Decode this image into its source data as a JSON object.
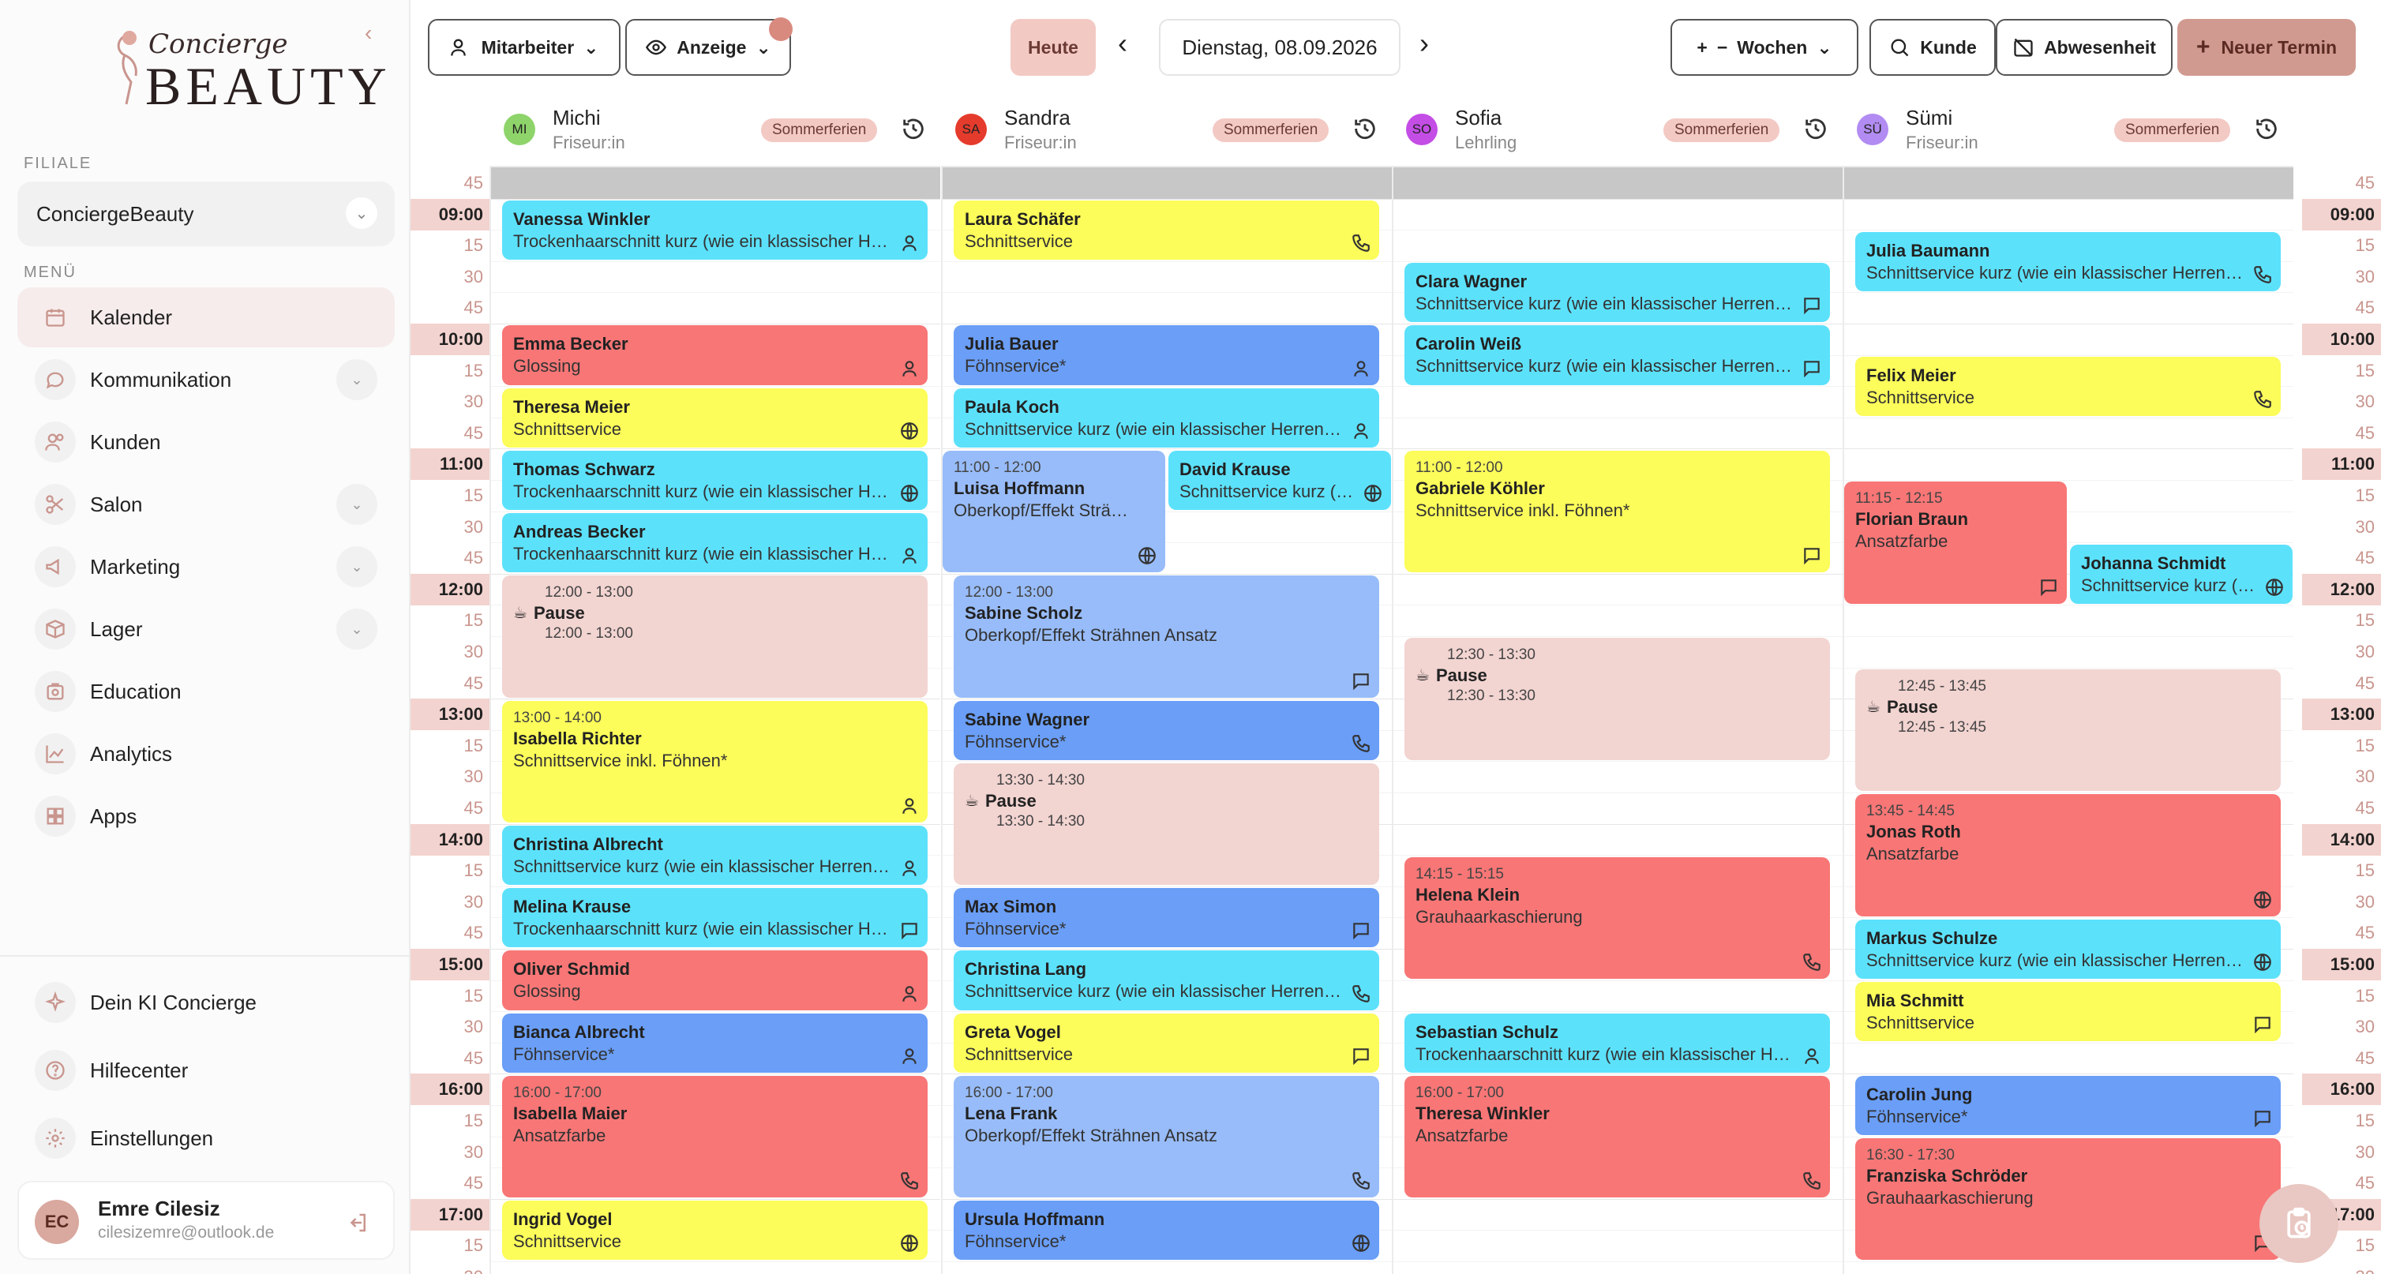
{
  "sidebar": {
    "logo_script": "Concierge",
    "logo_word": "BEAUTY",
    "branch_label": "FILIALE",
    "branch_value": "ConciergeBeauty",
    "menu_label": "MENÜ",
    "menu": [
      {
        "label": "Kalender",
        "icon": "calendar-icon"
      },
      {
        "label": "Kommunikation",
        "icon": "chat-icon"
      },
      {
        "label": "Kunden",
        "icon": "users-icon"
      },
      {
        "label": "Salon",
        "icon": "scissors-icon"
      },
      {
        "label": "Marketing",
        "icon": "megaphone-icon"
      },
      {
        "label": "Lager",
        "icon": "box-icon"
      },
      {
        "label": "Education",
        "icon": "education-icon"
      },
      {
        "label": "Analytics",
        "icon": "chart-icon"
      },
      {
        "label": "Apps",
        "icon": "apps-icon"
      }
    ],
    "bottom": [
      {
        "label": "Dein KI Concierge",
        "icon": "sparkle-icon"
      },
      {
        "label": "Hilfecenter",
        "icon": "help-icon"
      },
      {
        "label": "Einstellungen",
        "icon": "gear-icon"
      }
    ],
    "user": {
      "initials": "EC",
      "name": "Emre Cilesiz",
      "email": "cilesizemre@outlook.de"
    }
  },
  "toolbar": {
    "staff": "Mitarbeiter",
    "view": "Anzeige",
    "today": "Heute",
    "date": "Dienstag, 08.09.2026",
    "weeks": "Wochen",
    "customer": "Kunde",
    "absence": "Abwesenheit",
    "new": "Neuer Termin"
  },
  "colors": {
    "cyan": "#5ce1fb",
    "yellow": "#fcfc5a",
    "red": "#f87676",
    "blue": "#6a9ef7",
    "lightblue": "#98bcf9",
    "pause": "#f2d4d1",
    "accent": "#d19a90"
  },
  "staff": [
    {
      "initials": "MI",
      "name": "Michi",
      "role": "Friseur:in",
      "badge": "Sommerferien",
      "avatar_color": "#8ed46a"
    },
    {
      "initials": "SA",
      "name": "Sandra",
      "role": "Friseur:in",
      "badge": "Sommerferien",
      "avatar_color": "#e53b2c"
    },
    {
      "initials": "SO",
      "name": "Sofia",
      "role": "Lehrling",
      "badge": "Sommerferien",
      "avatar_color": "#c44de6"
    },
    {
      "initials": "SÜ",
      "name": "Sümi",
      "role": "Friseur:in",
      "badge": "Sommerferien",
      "avatar_color": "#b28cf2"
    }
  ],
  "time_labels": [
    "45",
    "09:00",
    "15",
    "30",
    "45",
    "10:00",
    "15",
    "30",
    "45",
    "11:00",
    "15",
    "30",
    "45",
    "12:00",
    "15",
    "30",
    "45",
    "13:00",
    "15",
    "30",
    "45",
    "14:00",
    "15",
    "30",
    "45",
    "15:00",
    "15",
    "30",
    "45",
    "16:00",
    "15",
    "30",
    "45",
    "17:00",
    "15",
    "30"
  ],
  "events": [
    {
      "col": 0,
      "sub": 0,
      "start": 0,
      "dur": 2,
      "color": "cyan",
      "time": "",
      "name": "Vanessa Winkler",
      "service": "Trockenhaarschnitt kurz (wie ein klassischer Herrenhaarschnitt)",
      "icon": "person-icon"
    },
    {
      "col": 0,
      "sub": 0,
      "start": 4,
      "dur": 2,
      "color": "red",
      "time": "",
      "name": "Emma Becker",
      "service": "Glossing",
      "icon": "person-icon"
    },
    {
      "col": 0,
      "sub": 0,
      "start": 6,
      "dur": 2,
      "color": "yellow",
      "time": "",
      "name": "Theresa Meier",
      "service": "Schnittservice",
      "icon": "globe-icon"
    },
    {
      "col": 0,
      "sub": 0,
      "start": 8,
      "dur": 2,
      "color": "cyan",
      "time": "",
      "name": "Thomas Schwarz",
      "service": "Trockenhaarschnitt kurz (wie ein klassischer Herrenhaarschnitt)",
      "icon": "globe-icon"
    },
    {
      "col": 0,
      "sub": 0,
      "start": 10,
      "dur": 2,
      "color": "cyan",
      "time": "",
      "name": "Andreas Becker",
      "service": "Trockenhaarschnitt kurz (wie ein klassischer Herrenhaarschnitt)",
      "icon": "person-icon"
    },
    {
      "col": 0,
      "sub": 0,
      "start": 12,
      "dur": 4,
      "color": "pause",
      "time": "12:00 - 13:00",
      "name": "Pause",
      "service": "12:00 - 13:00",
      "icon": ""
    },
    {
      "col": 0,
      "sub": 0,
      "start": 16,
      "dur": 4,
      "color": "yellow",
      "time": "13:00 - 14:00",
      "name": "Isabella Richter",
      "service": "Schnittservice inkl. Föhnen*",
      "icon": "person-icon"
    },
    {
      "col": 0,
      "sub": 0,
      "start": 20,
      "dur": 2,
      "color": "cyan",
      "time": "",
      "name": "Christina Albrecht",
      "service": "Schnittservice kurz (wie ein klassischer Herrenhaarschnitt)",
      "icon": "person-icon"
    },
    {
      "col": 0,
      "sub": 0,
      "start": 22,
      "dur": 2,
      "color": "cyan",
      "time": "",
      "name": "Melina Krause",
      "service": "Trockenhaarschnitt kurz (wie ein klassischer Herrenhaarschnitt)",
      "icon": "chat-icon"
    },
    {
      "col": 0,
      "sub": 0,
      "start": 24,
      "dur": 2,
      "color": "red",
      "time": "",
      "name": "Oliver Schmid",
      "service": "Glossing",
      "icon": "person-icon"
    },
    {
      "col": 0,
      "sub": 0,
      "start": 26,
      "dur": 2,
      "color": "blue",
      "time": "",
      "name": "Bianca Albrecht",
      "service": "Föhnservice*",
      "icon": "person-icon"
    },
    {
      "col": 0,
      "sub": 0,
      "start": 28,
      "dur": 4,
      "color": "red",
      "time": "16:00 - 17:00",
      "name": "Isabella Maier",
      "service": "Ansatzfarbe",
      "icon": "phone-icon"
    },
    {
      "col": 0,
      "sub": 0,
      "start": 32,
      "dur": 2,
      "color": "yellow",
      "time": "",
      "name": "Ingrid Vogel",
      "service": "Schnittservice",
      "icon": "globe-icon"
    },
    {
      "col": 1,
      "sub": 0,
      "start": 0,
      "dur": 2,
      "color": "yellow",
      "time": "",
      "name": "Laura Schäfer",
      "service": "Schnittservice",
      "icon": "phone-icon"
    },
    {
      "col": 1,
      "sub": 0,
      "start": 4,
      "dur": 2,
      "color": "blue",
      "time": "",
      "name": "Julia Bauer",
      "service": "Föhnservice*",
      "icon": "person-icon"
    },
    {
      "col": 1,
      "sub": 0,
      "start": 6,
      "dur": 2,
      "color": "cyan",
      "time": "",
      "name": "Paula Koch",
      "service": "Schnittservice kurz (wie ein klassischer Herrenhaarschnitt)",
      "icon": "person-icon"
    },
    {
      "col": 1,
      "sub": 1,
      "start": 8,
      "dur": 4,
      "color": "lightblue",
      "time": "11:00 - 12:00",
      "name": "Luisa Hoffmann",
      "service": "Oberkopf/Effekt Strähnen Ansatz",
      "icon": "globe-icon"
    },
    {
      "col": 1,
      "sub": 2,
      "start": 8,
      "dur": 2,
      "color": "cyan",
      "time": "",
      "name": "David Krause",
      "service": "Schnittservice kurz (wie ein klassischer Herrenhaarschnitt)",
      "icon": "globe-icon"
    },
    {
      "col": 1,
      "sub": 0,
      "start": 12,
      "dur": 4,
      "color": "lightblue",
      "time": "12:00 - 13:00",
      "name": "Sabine Scholz",
      "service": "Oberkopf/Effekt Strähnen Ansatz",
      "icon": "chat-icon"
    },
    {
      "col": 1,
      "sub": 0,
      "start": 16,
      "dur": 2,
      "color": "blue",
      "time": "",
      "name": "Sabine Wagner",
      "service": "Föhnservice*",
      "icon": "phone-icon"
    },
    {
      "col": 1,
      "sub": 0,
      "start": 18,
      "dur": 4,
      "color": "pause",
      "time": "13:30 - 14:30",
      "name": "Pause",
      "service": "13:30 - 14:30",
      "icon": ""
    },
    {
      "col": 1,
      "sub": 0,
      "start": 22,
      "dur": 2,
      "color": "blue",
      "time": "",
      "name": "Max Simon",
      "service": "Föhnservice*",
      "icon": "chat-icon"
    },
    {
      "col": 1,
      "sub": 0,
      "start": 24,
      "dur": 2,
      "color": "cyan",
      "time": "",
      "name": "Christina Lang",
      "service": "Schnittservice kurz (wie ein klassischer Herrenhaarschnitt)",
      "icon": "phone-icon"
    },
    {
      "col": 1,
      "sub": 0,
      "start": 26,
      "dur": 2,
      "color": "yellow",
      "time": "",
      "name": "Greta Vogel",
      "service": "Schnittservice",
      "icon": "chat-icon"
    },
    {
      "col": 1,
      "sub": 0,
      "start": 28,
      "dur": 4,
      "color": "lightblue",
      "time": "16:00 - 17:00",
      "name": "Lena Frank",
      "service": "Oberkopf/Effekt Strähnen Ansatz",
      "icon": "phone-icon"
    },
    {
      "col": 1,
      "sub": 0,
      "start": 32,
      "dur": 2,
      "color": "blue",
      "time": "",
      "name": "Ursula Hoffmann",
      "service": "Föhnservice*",
      "icon": "globe-icon"
    },
    {
      "col": 2,
      "sub": 0,
      "start": 2,
      "dur": 2,
      "color": "cyan",
      "time": "",
      "name": "Clara Wagner",
      "service": "Schnittservice kurz (wie ein klassischer Herrenhaarschnitt)",
      "icon": "chat-icon"
    },
    {
      "col": 2,
      "sub": 0,
      "start": 4,
      "dur": 2,
      "color": "cyan",
      "time": "",
      "name": "Carolin Weiß",
      "service": "Schnittservice kurz (wie ein klassischer Herrenhaarschnitt)",
      "icon": "chat-icon"
    },
    {
      "col": 2,
      "sub": 0,
      "start": 8,
      "dur": 4,
      "color": "yellow",
      "time": "11:00 - 12:00",
      "name": "Gabriele Köhler",
      "service": "Schnittservice inkl. Föhnen*",
      "icon": "chat-icon"
    },
    {
      "col": 2,
      "sub": 0,
      "start": 14,
      "dur": 4,
      "color": "pause",
      "time": "12:30 - 13:30",
      "name": "Pause",
      "service": "12:30 - 13:30",
      "icon": ""
    },
    {
      "col": 2,
      "sub": 0,
      "start": 21,
      "dur": 4,
      "color": "red",
      "time": "14:15 - 15:15",
      "name": "Helena Klein",
      "service": "Grauhaarkaschierung",
      "icon": "phone-icon"
    },
    {
      "col": 2,
      "sub": 0,
      "start": 26,
      "dur": 2,
      "color": "cyan",
      "time": "",
      "name": "Sebastian Schulz",
      "service": "Trockenhaarschnitt kurz (wie ein klassischer Herrenhaarschnitt)",
      "icon": "person-icon"
    },
    {
      "col": 2,
      "sub": 0,
      "start": 28,
      "dur": 4,
      "color": "red",
      "time": "16:00 - 17:00",
      "name": "Theresa Winkler",
      "service": "Ansatzfarbe",
      "icon": "phone-icon"
    },
    {
      "col": 3,
      "sub": 0,
      "start": 1,
      "dur": 2,
      "color": "cyan",
      "time": "",
      "name": "Julia Baumann",
      "service": "Schnittservice kurz (wie ein klassischer Herrenhaarschnitt)",
      "icon": "phone-icon"
    },
    {
      "col": 3,
      "sub": 0,
      "start": 5,
      "dur": 2,
      "color": "yellow",
      "time": "",
      "name": "Felix Meier",
      "service": "Schnittservice",
      "icon": "phone-icon"
    },
    {
      "col": 3,
      "sub": 1,
      "start": 9,
      "dur": 4,
      "color": "red",
      "time": "11:15 - 12:15",
      "name": "Florian Braun",
      "service": "Ansatzfarbe",
      "icon": "chat-icon"
    },
    {
      "col": 3,
      "sub": 2,
      "start": 11,
      "dur": 2,
      "color": "cyan",
      "time": "",
      "name": "Johanna Schmidt",
      "service": "Schnittservice kurz (wie ein klassischer Herrenhaarschnitt)",
      "icon": "globe-icon"
    },
    {
      "col": 3,
      "sub": 0,
      "start": 15,
      "dur": 4,
      "color": "pause",
      "time": "12:45 - 13:45",
      "name": "Pause",
      "service": "12:45 - 13:45",
      "icon": ""
    },
    {
      "col": 3,
      "sub": 0,
      "start": 19,
      "dur": 4,
      "color": "red",
      "time": "13:45 - 14:45",
      "name": "Jonas Roth",
      "service": "Ansatzfarbe",
      "icon": "globe-icon"
    },
    {
      "col": 3,
      "sub": 0,
      "start": 23,
      "dur": 2,
      "color": "cyan",
      "time": "",
      "name": "Markus Schulze",
      "service": "Schnittservice kurz (wie ein klassischer Herrenhaarschnitt)",
      "icon": "globe-icon"
    },
    {
      "col": 3,
      "sub": 0,
      "start": 25,
      "dur": 2,
      "color": "yellow",
      "time": "",
      "name": "Mia Schmitt",
      "service": "Schnittservice",
      "icon": "chat-icon"
    },
    {
      "col": 3,
      "sub": 0,
      "start": 28,
      "dur": 2,
      "color": "blue",
      "time": "",
      "name": "Carolin Jung",
      "service": "Föhnservice*",
      "icon": "chat-icon"
    },
    {
      "col": 3,
      "sub": 0,
      "start": 30,
      "dur": 4,
      "color": "red",
      "time": "16:30 - 17:30",
      "name": "Franziska Schröder",
      "service": "Grauhaarkaschierung",
      "icon": "chat-icon"
    }
  ]
}
